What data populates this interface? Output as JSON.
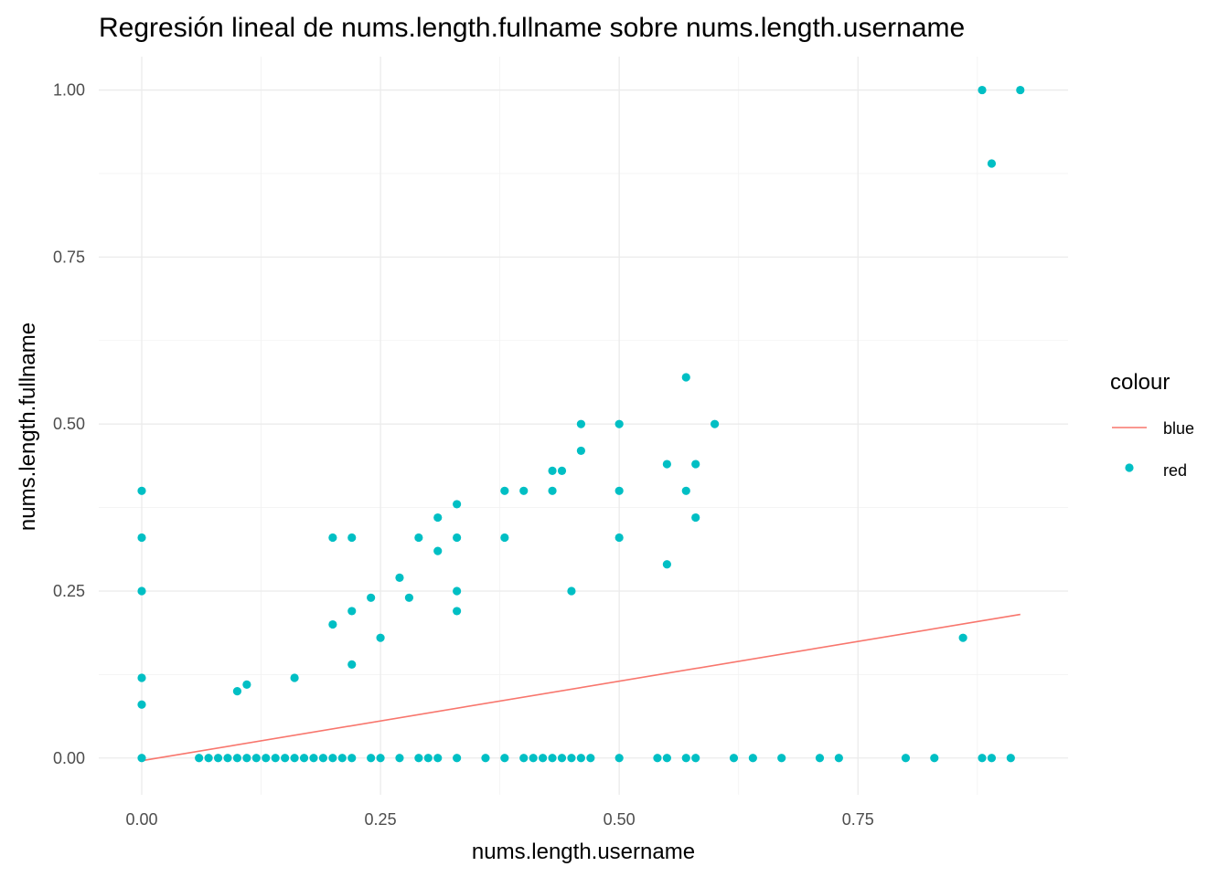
{
  "chart_data": {
    "type": "scatter",
    "title": "Regresión lineal de nums.length.fullname sobre nums.length.username",
    "xlabel": "nums.length.username",
    "ylabel": "nums.length.fullname",
    "xlim": [
      -0.045,
      0.97
    ],
    "ylim": [
      -0.055,
      1.05
    ],
    "x_ticks": [
      0.0,
      0.25,
      0.5,
      0.75
    ],
    "x_tick_labels": [
      "0.00",
      "0.25",
      "0.50",
      "0.75"
    ],
    "y_ticks": [
      0.0,
      0.25,
      0.5,
      0.75,
      1.0
    ],
    "y_tick_labels": [
      "0.00",
      "0.25",
      "0.50",
      "0.75",
      "1.00"
    ],
    "grid": true,
    "legend": {
      "title": "colour",
      "position": "right",
      "entries": [
        {
          "label": "blue",
          "kind": "line",
          "color": "#F8766D"
        },
        {
          "label": "red",
          "kind": "point",
          "color": "#00BFC4"
        }
      ]
    },
    "series": [
      {
        "name": "red",
        "kind": "scatter",
        "color": "#00BFC4",
        "points": [
          [
            0.0,
            0.4
          ],
          [
            0.0,
            0.33
          ],
          [
            0.0,
            0.25
          ],
          [
            0.0,
            0.12
          ],
          [
            0.0,
            0.08
          ],
          [
            0.0,
            0.0
          ],
          [
            0.06,
            0.0
          ],
          [
            0.07,
            0.0
          ],
          [
            0.08,
            0.0
          ],
          [
            0.09,
            0.0
          ],
          [
            0.1,
            0.0
          ],
          [
            0.11,
            0.0
          ],
          [
            0.12,
            0.0
          ],
          [
            0.13,
            0.0
          ],
          [
            0.14,
            0.0
          ],
          [
            0.15,
            0.0
          ],
          [
            0.16,
            0.0
          ],
          [
            0.17,
            0.0
          ],
          [
            0.18,
            0.0
          ],
          [
            0.19,
            0.0
          ],
          [
            0.2,
            0.0
          ],
          [
            0.21,
            0.0
          ],
          [
            0.22,
            0.0
          ],
          [
            0.24,
            0.0
          ],
          [
            0.25,
            0.0
          ],
          [
            0.27,
            0.0
          ],
          [
            0.29,
            0.0
          ],
          [
            0.3,
            0.0
          ],
          [
            0.31,
            0.0
          ],
          [
            0.33,
            0.0
          ],
          [
            0.36,
            0.0
          ],
          [
            0.38,
            0.0
          ],
          [
            0.4,
            0.0
          ],
          [
            0.41,
            0.0
          ],
          [
            0.42,
            0.0
          ],
          [
            0.43,
            0.0
          ],
          [
            0.44,
            0.0
          ],
          [
            0.45,
            0.0
          ],
          [
            0.46,
            0.0
          ],
          [
            0.47,
            0.0
          ],
          [
            0.5,
            0.0
          ],
          [
            0.54,
            0.0
          ],
          [
            0.55,
            0.0
          ],
          [
            0.57,
            0.0
          ],
          [
            0.58,
            0.0
          ],
          [
            0.62,
            0.0
          ],
          [
            0.64,
            0.0
          ],
          [
            0.67,
            0.0
          ],
          [
            0.71,
            0.0
          ],
          [
            0.73,
            0.0
          ],
          [
            0.8,
            0.0
          ],
          [
            0.83,
            0.0
          ],
          [
            0.88,
            0.0
          ],
          [
            0.89,
            0.0
          ],
          [
            0.91,
            0.0
          ],
          [
            0.1,
            0.1
          ],
          [
            0.11,
            0.11
          ],
          [
            0.16,
            0.12
          ],
          [
            0.2,
            0.33
          ],
          [
            0.2,
            0.2
          ],
          [
            0.22,
            0.33
          ],
          [
            0.22,
            0.22
          ],
          [
            0.22,
            0.14
          ],
          [
            0.24,
            0.24
          ],
          [
            0.25,
            0.18
          ],
          [
            0.27,
            0.27
          ],
          [
            0.28,
            0.24
          ],
          [
            0.29,
            0.33
          ],
          [
            0.31,
            0.36
          ],
          [
            0.31,
            0.31
          ],
          [
            0.33,
            0.38
          ],
          [
            0.33,
            0.33
          ],
          [
            0.33,
            0.25
          ],
          [
            0.33,
            0.22
          ],
          [
            0.38,
            0.4
          ],
          [
            0.38,
            0.33
          ],
          [
            0.4,
            0.4
          ],
          [
            0.43,
            0.43
          ],
          [
            0.44,
            0.43
          ],
          [
            0.43,
            0.4
          ],
          [
            0.45,
            0.25
          ],
          [
            0.46,
            0.5
          ],
          [
            0.46,
            0.46
          ],
          [
            0.5,
            0.5
          ],
          [
            0.5,
            0.4
          ],
          [
            0.5,
            0.33
          ],
          [
            0.55,
            0.44
          ],
          [
            0.55,
            0.29
          ],
          [
            0.57,
            0.57
          ],
          [
            0.57,
            0.4
          ],
          [
            0.58,
            0.44
          ],
          [
            0.58,
            0.36
          ],
          [
            0.6,
            0.5
          ],
          [
            0.86,
            0.18
          ],
          [
            0.88,
            1.0
          ],
          [
            0.89,
            0.89
          ],
          [
            0.92,
            1.0
          ]
        ]
      },
      {
        "name": "blue",
        "kind": "line",
        "color": "#F8766D",
        "points": [
          [
            0.0,
            -0.004
          ],
          [
            0.92,
            0.215
          ]
        ]
      }
    ]
  }
}
